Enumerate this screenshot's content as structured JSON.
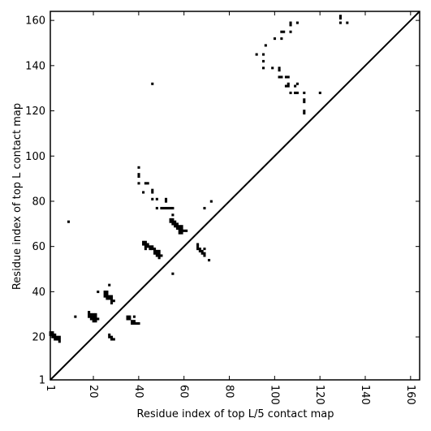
{
  "chart_data": {
    "type": "scatter",
    "xlabel": "Residue index of top L/5 contact map",
    "ylabel": "Residue index of top L contact map",
    "xlim": [
      1,
      164
    ],
    "ylim": [
      1,
      164
    ],
    "x_ticks": [
      1,
      20,
      40,
      60,
      80,
      100,
      120,
      140,
      160
    ],
    "y_ticks": [
      1,
      20,
      40,
      60,
      80,
      100,
      120,
      140,
      160
    ],
    "diagonal": [
      [
        1,
        1
      ],
      [
        164,
        164
      ]
    ],
    "grid": false,
    "marker": "filled-square",
    "color": "#000000",
    "points": [
      [
        1,
        21
      ],
      [
        1,
        22
      ],
      [
        2,
        20
      ],
      [
        2,
        21
      ],
      [
        2,
        22
      ],
      [
        3,
        19
      ],
      [
        3,
        20
      ],
      [
        3,
        21
      ],
      [
        4,
        19
      ],
      [
        4,
        20
      ],
      [
        5,
        18
      ],
      [
        5,
        19
      ],
      [
        5,
        20
      ],
      [
        9,
        71
      ],
      [
        12,
        29
      ],
      [
        18,
        29
      ],
      [
        18,
        30
      ],
      [
        18,
        31
      ],
      [
        19,
        28
      ],
      [
        19,
        29
      ],
      [
        19,
        30
      ],
      [
        20,
        27
      ],
      [
        20,
        28
      ],
      [
        20,
        29
      ],
      [
        20,
        30
      ],
      [
        21,
        27
      ],
      [
        21,
        28
      ],
      [
        21,
        29
      ],
      [
        21,
        30
      ],
      [
        22,
        28
      ],
      [
        22,
        40
      ],
      [
        25,
        38
      ],
      [
        25,
        39
      ],
      [
        25,
        40
      ],
      [
        26,
        37
      ],
      [
        26,
        38
      ],
      [
        26,
        39
      ],
      [
        26,
        40
      ],
      [
        27,
        20
      ],
      [
        27,
        21
      ],
      [
        27,
        37
      ],
      [
        27,
        38
      ],
      [
        27,
        43
      ],
      [
        28,
        19
      ],
      [
        28,
        20
      ],
      [
        28,
        35
      ],
      [
        28,
        36
      ],
      [
        28,
        37
      ],
      [
        28,
        38
      ],
      [
        29,
        19
      ],
      [
        29,
        36
      ],
      [
        35,
        28
      ],
      [
        35,
        29
      ],
      [
        36,
        28
      ],
      [
        36,
        29
      ],
      [
        37,
        26
      ],
      [
        37,
        27
      ],
      [
        38,
        26
      ],
      [
        38,
        27
      ],
      [
        38,
        29
      ],
      [
        39,
        26
      ],
      [
        40,
        26
      ],
      [
        40,
        88
      ],
      [
        40,
        91
      ],
      [
        40,
        92
      ],
      [
        40,
        95
      ],
      [
        42,
        61
      ],
      [
        42,
        62
      ],
      [
        42,
        84
      ],
      [
        43,
        59
      ],
      [
        43,
        60
      ],
      [
        43,
        61
      ],
      [
        43,
        62
      ],
      [
        43,
        88
      ],
      [
        44,
        60
      ],
      [
        44,
        61
      ],
      [
        44,
        88
      ],
      [
        45,
        59
      ],
      [
        45,
        60
      ],
      [
        46,
        59
      ],
      [
        46,
        60
      ],
      [
        46,
        81
      ],
      [
        46,
        84
      ],
      [
        46,
        85
      ],
      [
        46,
        132
      ],
      [
        47,
        57
      ],
      [
        47,
        58
      ],
      [
        47,
        59
      ],
      [
        48,
        56
      ],
      [
        48,
        57
      ],
      [
        48,
        58
      ],
      [
        48,
        77
      ],
      [
        48,
        81
      ],
      [
        49,
        55
      ],
      [
        49,
        56
      ],
      [
        49,
        57
      ],
      [
        49,
        58
      ],
      [
        50,
        56
      ],
      [
        50,
        77
      ],
      [
        51,
        77
      ],
      [
        52,
        77
      ],
      [
        52,
        80
      ],
      [
        52,
        81
      ],
      [
        53,
        77
      ],
      [
        54,
        71
      ],
      [
        54,
        72
      ],
      [
        54,
        77
      ],
      [
        55,
        48
      ],
      [
        55,
        70
      ],
      [
        55,
        71
      ],
      [
        55,
        72
      ],
      [
        55,
        74
      ],
      [
        55,
        77
      ],
      [
        56,
        69
      ],
      [
        56,
        70
      ],
      [
        56,
        71
      ],
      [
        57,
        68
      ],
      [
        57,
        69
      ],
      [
        57,
        70
      ],
      [
        58,
        66
      ],
      [
        58,
        67
      ],
      [
        58,
        68
      ],
      [
        58,
        69
      ],
      [
        59,
        66
      ],
      [
        59,
        67
      ],
      [
        59,
        68
      ],
      [
        59,
        69
      ],
      [
        60,
        67
      ],
      [
        61,
        67
      ],
      [
        66,
        59
      ],
      [
        66,
        60
      ],
      [
        66,
        61
      ],
      [
        67,
        58
      ],
      [
        67,
        59
      ],
      [
        68,
        57
      ],
      [
        68,
        58
      ],
      [
        69,
        56
      ],
      [
        69,
        57
      ],
      [
        69,
        59
      ],
      [
        69,
        77
      ],
      [
        71,
        54
      ],
      [
        72,
        80
      ],
      [
        92,
        145
      ],
      [
        95,
        139
      ],
      [
        95,
        142
      ],
      [
        95,
        145
      ],
      [
        96,
        149
      ],
      [
        99,
        139
      ],
      [
        100,
        152
      ],
      [
        102,
        135
      ],
      [
        102,
        138
      ],
      [
        102,
        139
      ],
      [
        103,
        135
      ],
      [
        103,
        152
      ],
      [
        103,
        155
      ],
      [
        104,
        155
      ],
      [
        105,
        131
      ],
      [
        105,
        135
      ],
      [
        106,
        131
      ],
      [
        106,
        132
      ],
      [
        106,
        135
      ],
      [
        107,
        128
      ],
      [
        107,
        155
      ],
      [
        107,
        158
      ],
      [
        107,
        159
      ],
      [
        109,
        128
      ],
      [
        109,
        131
      ],
      [
        110,
        128
      ],
      [
        110,
        132
      ],
      [
        110,
        159
      ],
      [
        113,
        119
      ],
      [
        113,
        120
      ],
      [
        113,
        124
      ],
      [
        113,
        125
      ],
      [
        113,
        128
      ],
      [
        120,
        128
      ],
      [
        129,
        159
      ],
      [
        129,
        161
      ],
      [
        129,
        162
      ],
      [
        132,
        159
      ]
    ]
  }
}
